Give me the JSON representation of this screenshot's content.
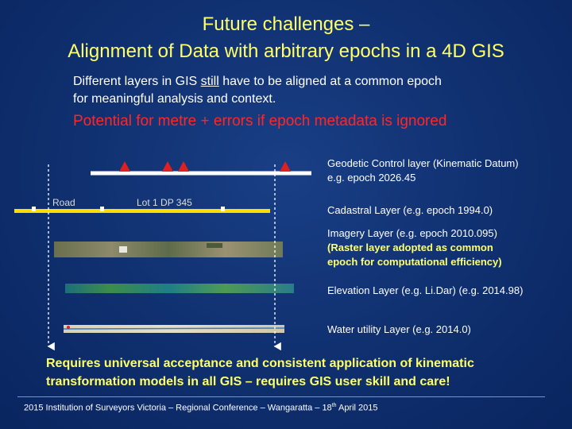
{
  "title": {
    "line1": "Future challenges –",
    "line2": "Alignment of Data with arbitrary epochs in a 4D GIS"
  },
  "intro": {
    "line1_pre": "Different layers in GIS ",
    "line1_underlined": "still",
    "line1_post": " have to be aligned at a common epoch",
    "line2": "for meaningful analysis and context."
  },
  "warning": "Potential for metre + errors if epoch metadata is ignored",
  "diagram": {
    "road_label": "Road",
    "lot_label": "Lot 1 DP 345"
  },
  "layers": [
    {
      "line1": "Geodetic Control layer (Kinematic Datum)",
      "line2": "e.g. epoch 2026.45"
    },
    {
      "line1": "Cadastral Layer (e.g. epoch 1994.0)"
    },
    {
      "line1": "Imagery Layer (e.g. epoch 2010.095)",
      "note1": "(Raster layer adopted as common",
      "note2": "epoch for computational efficiency)"
    },
    {
      "line1": "Elevation Layer (e.g. Li.Dar) (e.g. 2014.98)"
    },
    {
      "line1": "Water utility Layer (e.g. 2014.0)"
    }
  ],
  "conclusion": {
    "line1": "Requires universal acceptance and consistent application of kinematic",
    "line2": "transformation models in all GIS – requires GIS user skill and care!"
  },
  "footer": {
    "pre": "2015 Institution of Surveyors Victoria – Regional Conference – Wangaratta – 18",
    "sup": "th",
    "post": " April 2015"
  },
  "colors": {
    "background": "#0f2f6e",
    "title": "#ffff66",
    "warning": "#ff2626",
    "control_marker": "#e02020",
    "cadastral_line": "#ffdd00"
  }
}
